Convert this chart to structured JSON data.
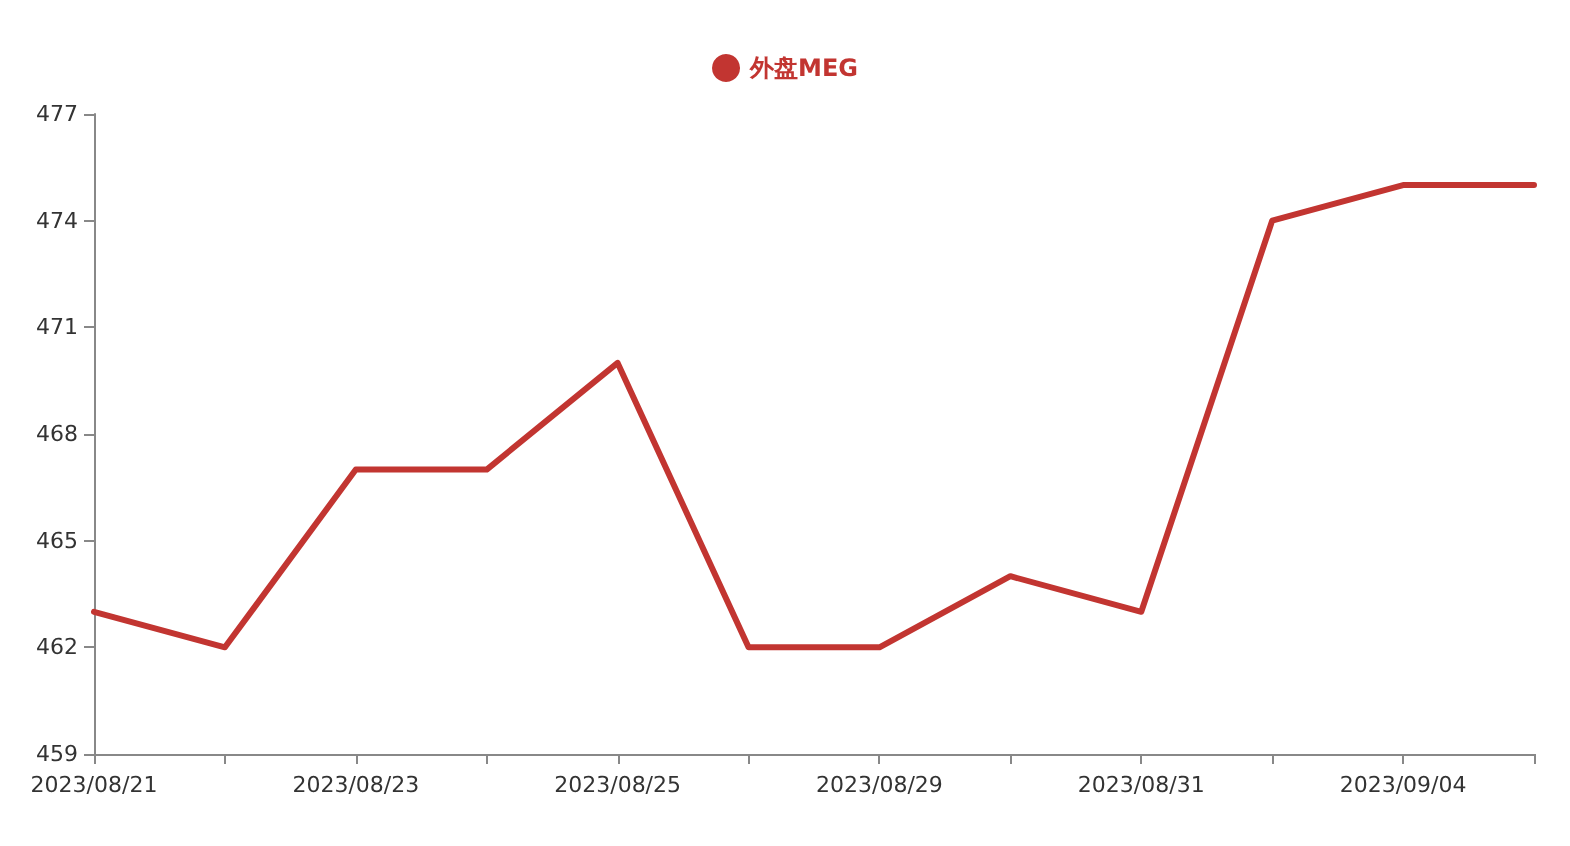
{
  "chart_data": {
    "type": "line",
    "categories": [
      "2023/08/21",
      null,
      "2023/08/23",
      null,
      "2023/08/25",
      null,
      "2023/08/29",
      null,
      "2023/08/31",
      null,
      "2023/09/04",
      null
    ],
    "series": [
      {
        "name": "外盘MEG",
        "color": "#c23531",
        "values": [
          463,
          462,
          467,
          467,
          470,
          462,
          462,
          464,
          463,
          474,
          475,
          475
        ]
      }
    ],
    "ylim": [
      459,
      477
    ],
    "yticks": [
      459,
      462,
      465,
      468,
      471,
      474,
      477
    ],
    "grid": false,
    "legend": "top",
    "marker": "none",
    "line_style": "solid"
  }
}
